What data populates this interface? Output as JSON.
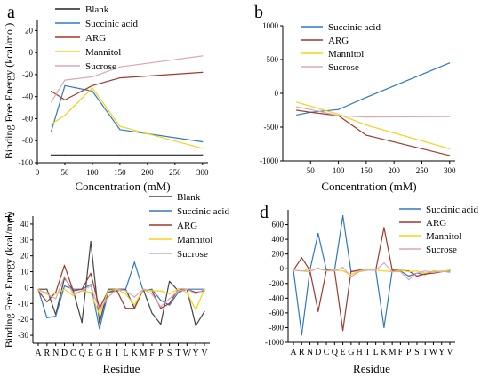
{
  "chart_data": [
    {
      "panel_label": "a",
      "type": "line",
      "xlabel": "Concentration (mM)",
      "ylabel": "Binding Free Energy (kcal/mol)",
      "xlim": [
        0,
        310
      ],
      "ylim": [
        -100,
        30
      ],
      "xticks": [
        0,
        50,
        100,
        150,
        200,
        250,
        300
      ],
      "yticks": [
        -100,
        -80,
        -60,
        -40,
        -20,
        0,
        20
      ],
      "legend_position": "top-left",
      "series": [
        {
          "name": "Blank",
          "color": "#222222",
          "x": [
            25,
            50,
            100,
            150,
            300
          ],
          "y": [
            -93,
            -93,
            -93,
            -93,
            -93
          ]
        },
        {
          "name": "Succinic acid",
          "color": "#2f78c4",
          "x": [
            25,
            50,
            100,
            150,
            300
          ],
          "y": [
            -72,
            -30,
            -35,
            -70,
            -81
          ]
        },
        {
          "name": "ARG",
          "color": "#a0392e",
          "x": [
            25,
            50,
            100,
            150,
            300
          ],
          "y": [
            -35,
            -43,
            -30,
            -23,
            -18
          ]
        },
        {
          "name": "Mannitol",
          "color": "#f2d21b",
          "x": [
            25,
            50,
            100,
            150,
            300
          ],
          "y": [
            -65,
            -57,
            -32,
            -67,
            -87
          ]
        },
        {
          "name": "Sucrose",
          "color": "#dba8b4",
          "x": [
            25,
            50,
            100,
            150,
            300
          ],
          "y": [
            -45,
            -25,
            -22,
            -13,
            -3
          ]
        }
      ]
    },
    {
      "panel_label": "b",
      "type": "line",
      "xlabel": "Concentration (mM)",
      "ylabel": "",
      "xlim": [
        0,
        310
      ],
      "ylim": [
        -1000,
        1000
      ],
      "xticks": [
        50,
        100,
        150,
        200,
        250,
        300
      ],
      "yticks": [
        -1000,
        -500,
        0,
        500,
        1000
      ],
      "legend_position": "top-left",
      "series": [
        {
          "name": "Succinic acid",
          "color": "#2f78c4",
          "x": [
            25,
            50,
            100,
            150,
            300
          ],
          "y": [
            -320,
            -280,
            -240,
            -60,
            450
          ]
        },
        {
          "name": "ARG",
          "color": "#a0392e",
          "x": [
            25,
            50,
            100,
            150,
            300
          ],
          "y": [
            -250,
            -280,
            -330,
            -620,
            -920
          ]
        },
        {
          "name": "Mannitol",
          "color": "#f2d21b",
          "x": [
            25,
            50,
            100,
            150,
            300
          ],
          "y": [
            -130,
            -190,
            -310,
            -470,
            -820
          ]
        },
        {
          "name": "Sucrose",
          "color": "#dba8b4",
          "x": [
            25,
            50,
            100,
            150,
            300
          ],
          "y": [
            -200,
            -240,
            -330,
            -350,
            -345
          ]
        }
      ]
    },
    {
      "panel_label": "c",
      "type": "line",
      "xlabel": "Residue",
      "ylabel": "Binding Free Energy (kcal/mol)",
      "categories": [
        "A",
        "R",
        "N",
        "D",
        "C",
        "Q",
        "E",
        "G",
        "H",
        "I",
        "L",
        "K",
        "M",
        "F",
        "P",
        "S",
        "T",
        "W",
        "Y",
        "V"
      ],
      "ylim": [
        -35,
        45
      ],
      "yticks": [
        -30,
        -20,
        -10,
        0,
        10,
        20,
        30,
        40
      ],
      "legend_position": "top-right",
      "series": [
        {
          "name": "Blank",
          "color": "#444444",
          "values": [
            -1,
            -1,
            -17,
            6,
            -2,
            -22,
            29,
            -22,
            -1,
            -1,
            -1,
            -13,
            -1,
            -16,
            -23,
            4,
            -2,
            -1,
            -24,
            -15
          ]
        },
        {
          "name": "Succinic acid",
          "color": "#2f78c4",
          "values": [
            -1,
            -19,
            -18,
            1,
            -1,
            -1,
            2,
            -26,
            -3,
            -2,
            -1,
            16,
            -2,
            -1,
            -8,
            -11,
            -3,
            -1,
            -1,
            -1
          ]
        },
        {
          "name": "ARG",
          "color": "#a0392e",
          "values": [
            -2,
            -9,
            -3,
            14,
            -2,
            -1,
            9,
            -13,
            -2,
            -2,
            -13,
            -13,
            -1,
            -2,
            -13,
            -10,
            -1,
            -1,
            -3,
            -2
          ]
        },
        {
          "name": "Mannitol",
          "color": "#f2d21b",
          "values": [
            -2,
            -3,
            -4,
            -1,
            -5,
            -2,
            -3,
            -17,
            -2,
            -1,
            -4,
            -11,
            -1,
            -2,
            -2,
            -4,
            -1,
            -3,
            -14,
            -1
          ]
        },
        {
          "name": "Sucrose",
          "color": "#dba8b4",
          "values": [
            -1,
            -4,
            -7,
            7,
            -4,
            -2,
            1,
            -14,
            -6,
            -1,
            -2,
            -6,
            -1,
            -4,
            -12,
            -7,
            -2,
            -1,
            -4,
            -1
          ]
        }
      ]
    },
    {
      "panel_label": "d",
      "type": "line",
      "xlabel": "Residue",
      "ylabel": "",
      "categories": [
        "A",
        "R",
        "N",
        "D",
        "C",
        "Q",
        "E",
        "G",
        "H",
        "I",
        "L",
        "K",
        "M",
        "F",
        "P",
        "S",
        "T",
        "W",
        "Y",
        "V"
      ],
      "ylim": [
        -1000,
        800
      ],
      "yticks": [
        -1000,
        -800,
        -600,
        -400,
        -200,
        0,
        200,
        400,
        600
      ],
      "legend_position": "top-right",
      "series": [
        {
          "name": "Succinic acid",
          "color": "#2f78c4",
          "values": [
            -20,
            -900,
            -20,
            480,
            -20,
            -20,
            720,
            -40,
            -20,
            -20,
            -20,
            -800,
            -20,
            -30,
            -100,
            -60,
            -80,
            -30,
            -40,
            -30
          ]
        },
        {
          "name": "ARG",
          "color": "#a0392e",
          "values": [
            -20,
            150,
            -20,
            -580,
            -20,
            -30,
            -840,
            -40,
            -20,
            -20,
            -20,
            560,
            -20,
            -20,
            -30,
            -100,
            -70,
            -60,
            -40,
            -20
          ]
        },
        {
          "name": "Mannitol",
          "color": "#f2d21b",
          "values": [
            -20,
            -30,
            -10,
            0,
            -30,
            -20,
            -30,
            -80,
            -30,
            -10,
            -20,
            -30,
            -40,
            -20,
            -40,
            -30,
            -60,
            -30,
            -40,
            -20
          ]
        },
        {
          "name": "Sucrose",
          "color": "#dba8b4",
          "values": [
            -20,
            -30,
            -40,
            10,
            -30,
            -30,
            20,
            -110,
            -40,
            -20,
            -20,
            80,
            -40,
            -40,
            -150,
            -60,
            -30,
            -50,
            -30,
            -50
          ]
        }
      ]
    }
  ]
}
